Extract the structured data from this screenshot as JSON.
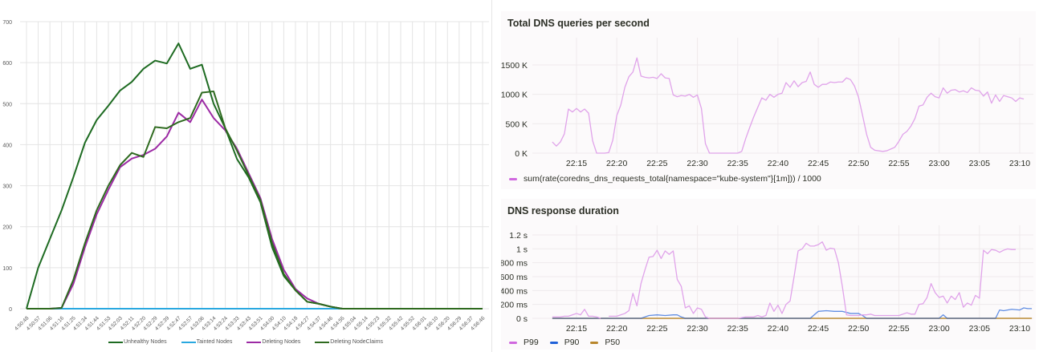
{
  "chart_data": [
    {
      "type": "line",
      "title": "",
      "xlabel": "",
      "ylabel": "",
      "ylim": [
        0,
        700
      ],
      "yticks": [
        0,
        100,
        200,
        300,
        400,
        500,
        600,
        700
      ],
      "grid": true,
      "legend_position": "bottom",
      "x": [
        "4:50:48",
        "4:50:57",
        "4:51:06",
        "4:51:16",
        "4:51:25",
        "4:51:34",
        "4:51:44",
        "4:51:53",
        "4:52:03",
        "4:52:11",
        "4:52:20",
        "4:52:29",
        "4:52:39",
        "4:52:47",
        "4:52:57",
        "4:53:06",
        "4:53:14",
        "4:53:24",
        "4:53:33",
        "4:53:43",
        "4:53:51",
        "4:54:00",
        "4:54:10",
        "4:54:18",
        "4:54:27",
        "4:54:37",
        "4:54:46",
        "4:54:55",
        "4:55:04",
        "4:55:14",
        "4:55:23",
        "4:55:32",
        "4:55:42",
        "4:55:52",
        "4:56:01",
        "4:56:10",
        "4:56:20",
        "4:56:29",
        "4:56:37",
        "4:56:46"
      ],
      "series": [
        {
          "name": "Unhealthy Nodes",
          "color": "#1e6b22",
          "values": [
            0,
            100,
            170,
            240,
            320,
            405,
            460,
            495,
            532,
            553,
            585,
            605,
            598,
            647,
            585,
            595,
            500,
            440,
            365,
            320,
            260,
            150,
            80,
            45,
            17,
            12,
            5,
            0,
            0,
            0,
            0,
            0,
            0,
            0,
            0,
            0,
            0,
            0,
            0,
            0
          ]
        },
        {
          "name": "Tainted Nodes",
          "color": "#29a8e0",
          "values": [
            0,
            0,
            0,
            0,
            0,
            0,
            0,
            0,
            0,
            0,
            0,
            0,
            0,
            0,
            0,
            0,
            0,
            0,
            0,
            0,
            0,
            0,
            0,
            0,
            0,
            0,
            0,
            0,
            0,
            0,
            0,
            0,
            0,
            0,
            0,
            0,
            0,
            0,
            0,
            0
          ]
        },
        {
          "name": "Deleting Nodes",
          "color": "#9c2aa4",
          "values": [
            0,
            0,
            0,
            2,
            60,
            150,
            230,
            290,
            345,
            366,
            375,
            390,
            420,
            478,
            455,
            510,
            465,
            435,
            390,
            330,
            270,
            170,
            95,
            48,
            25,
            12,
            5,
            0,
            0,
            0,
            0,
            0,
            0,
            0,
            0,
            0,
            0,
            0,
            0,
            0
          ]
        },
        {
          "name": "Deleting NodeClaims",
          "color": "#2e6a1f",
          "values": [
            0,
            0,
            0,
            2,
            70,
            160,
            240,
            300,
            350,
            380,
            370,
            443,
            440,
            455,
            465,
            527,
            530,
            440,
            385,
            325,
            265,
            160,
            85,
            45,
            17,
            12,
            5,
            0,
            0,
            0,
            0,
            0,
            0,
            0,
            0,
            0,
            0,
            0,
            0,
            0
          ]
        }
      ]
    },
    {
      "type": "line",
      "title": "Total DNS queries per second",
      "xlabel": "",
      "ylabel": "",
      "ylim": [
        0,
        1800
      ],
      "yticks": [
        "0 K",
        "500 K",
        "1000 K",
        "1500 K"
      ],
      "x_ticks": [
        "22:15",
        "22:20",
        "22:25",
        "22:30",
        "22:35",
        "22:40",
        "22:45",
        "22:50",
        "22:55",
        "23:00",
        "23:05",
        "23:10"
      ],
      "grid": true,
      "legend_position": "bottom",
      "series": [
        {
          "name": "sum(rate(coredns_dns_requests_total{namespace=\"kube-system\"}[1m])) / 1000",
          "color": "#e0a3ea",
          "x_min": [
            12,
            12.5,
            13,
            13.5,
            14,
            14.5,
            15,
            15.5,
            16,
            16.5,
            17,
            17.5,
            18,
            18.5,
            19,
            19.5,
            20,
            20.5,
            21,
            21.5,
            22,
            22.5,
            23,
            23.5,
            24,
            24.5,
            25,
            25.5,
            26,
            26.5,
            27,
            27.5,
            28,
            28.5,
            29,
            29.5,
            30,
            30.5,
            31,
            31.5,
            32,
            33,
            34,
            35,
            35.5,
            36,
            36.5,
            37,
            37.5,
            38,
            38.5,
            39,
            39.5,
            40,
            40.5,
            41,
            41.5,
            42,
            42.5,
            43,
            43.5,
            44,
            44.5,
            45,
            45.5,
            46,
            46.5,
            47,
            47.5,
            48,
            48.5,
            49,
            49.5,
            50,
            50.5,
            51,
            51.5,
            52,
            53,
            53.5,
            54,
            54.5,
            55,
            55.5,
            56,
            56.5,
            57,
            57.5,
            58,
            58.5,
            59,
            59.5,
            60,
            60.5,
            61,
            61.5,
            62,
            62.5,
            63,
            63.5,
            64,
            64.5,
            65,
            65.5,
            66,
            66.5,
            67,
            67.5,
            68,
            68.5,
            69,
            69.5,
            70,
            70.5,
            71,
            71.5
          ],
          "values": [
            190,
            120,
            190,
            330,
            750,
            700,
            760,
            700,
            750,
            680,
            210,
            0,
            0,
            0,
            10,
            220,
            640,
            820,
            1120,
            1300,
            1380,
            1620,
            1310,
            1290,
            1280,
            1290,
            1270,
            1350,
            1280,
            1270,
            990,
            960,
            980,
            970,
            1000,
            950,
            990,
            760,
            160,
            0,
            0,
            0,
            0,
            0,
            30,
            250,
            440,
            620,
            780,
            940,
            900,
            1000,
            950,
            1000,
            1020,
            1200,
            1120,
            1230,
            1130,
            1200,
            1220,
            1380,
            1170,
            1120,
            1170,
            1170,
            1210,
            1200,
            1210,
            1210,
            1280,
            1250,
            1140,
            950,
            640,
            320,
            100,
            50,
            30,
            40,
            70,
            100,
            200,
            320,
            370,
            460,
            590,
            800,
            820,
            950,
            1020,
            960,
            940,
            1110,
            1020,
            1070,
            1080,
            1040,
            1060,
            1030,
            1110,
            1070,
            1060,
            970,
            1040,
            850,
            990,
            880,
            980,
            960,
            940,
            880,
            940,
            920
          ]
        }
      ]
    },
    {
      "type": "line",
      "title": "DNS response duration",
      "xlabel": "",
      "ylabel": "",
      "ylim": [
        0,
        1.2
      ],
      "yticks": [
        "0 s",
        "200 ms",
        "400 ms",
        "600 ms",
        "800 ms",
        "1 s",
        "1.2 s"
      ],
      "x_ticks": [
        "22:15",
        "22:20",
        "22:25",
        "22:30",
        "22:35",
        "22:40",
        "22:45",
        "22:50",
        "22:55",
        "23:00",
        "23:05",
        "23:10"
      ],
      "grid": true,
      "legend_position": "bottom",
      "series": [
        {
          "name": "P99",
          "color": "#e0a3ea",
          "x_min": [
            12,
            12.5,
            13,
            13.5,
            14,
            14.5,
            15,
            15.5,
            16,
            16.5,
            17,
            17.5,
            18,
            null,
            19,
            19.5,
            20,
            20.5,
            21,
            21.5,
            22,
            22.5,
            23,
            23.5,
            24,
            24.5,
            25,
            25.5,
            26,
            26.5,
            27,
            27.5,
            28,
            28.5,
            29,
            29.5,
            30,
            30.5,
            31,
            31.5,
            32,
            33,
            34,
            35,
            35.5,
            36,
            36.5,
            37,
            37.5,
            38,
            38.5,
            39,
            39.5,
            40,
            40.5,
            41,
            41.5,
            42,
            42.5,
            43,
            43.5,
            44,
            44.5,
            45,
            45.5,
            46,
            46.5,
            47,
            47.5,
            48,
            48.5,
            49,
            49.5,
            50,
            50.5,
            51,
            51.5,
            52,
            53,
            54,
            55,
            56,
            56.5,
            57,
            57.5,
            58,
            58.5,
            59,
            59.5,
            60,
            60.5,
            61,
            61.5,
            62,
            62.5,
            63,
            63.5,
            64,
            64.5,
            65,
            65.5,
            66,
            66.5,
            67,
            67.5,
            68,
            68.5,
            69,
            69.5,
            70,
            70.5,
            71,
            71.5
          ],
          "values": [
            0.02,
            0.02,
            0.02,
            0.03,
            0.03,
            0.05,
            0.07,
            0.05,
            0.13,
            0.03,
            0.03,
            0.02,
            0,
            null,
            0.03,
            0.03,
            0.03,
            0.05,
            0.07,
            0.11,
            0.36,
            0.18,
            0.5,
            0.7,
            0.88,
            0.89,
            0.98,
            0.86,
            0.97,
            0.92,
            0.97,
            0.56,
            0.46,
            0.15,
            0.18,
            0.07,
            0.15,
            0.13,
            0.02,
            0,
            0,
            0,
            0,
            0,
            0.01,
            0.02,
            0.02,
            0.02,
            0.04,
            0.02,
            0.04,
            0.22,
            0.1,
            0.19,
            0.07,
            0.2,
            0.25,
            0.6,
            0.97,
            1.0,
            1.08,
            1.04,
            1.04,
            1.06,
            1.1,
            0.98,
            1.01,
            1.0,
            0.8,
            0.45,
            0.05,
            0.04,
            0.04,
            0.04,
            0.05,
            0.05,
            0.06,
            0.04,
            0.04,
            0.04,
            0.04,
            0.08,
            0.06,
            0.06,
            0.2,
            0.21,
            0.3,
            0.5,
            0.37,
            0.3,
            0.32,
            0.22,
            0.32,
            0.27,
            0.37,
            0.16,
            0.22,
            0.19,
            0.33,
            0.29,
            0.98,
            0.93,
            0.99,
            0.98,
            0.95,
            0.98,
            1.0,
            0.99,
            0.99
          ]
        },
        {
          "name": "P90",
          "color": "#1f60d8",
          "x_min": [
            12,
            23,
            24,
            25,
            26,
            27,
            27.5,
            28,
            28.5,
            44,
            45,
            46,
            47,
            48,
            49,
            50,
            50.5,
            51,
            60,
            60.5,
            61,
            67,
            67.5,
            68,
            69,
            70,
            70.5,
            71,
            71.5
          ],
          "values": [
            0,
            0,
            0.04,
            0.05,
            0.04,
            0.05,
            0.05,
            0.02,
            0,
            0,
            0.1,
            0.11,
            0.1,
            0.1,
            0.07,
            0.07,
            0.04,
            0,
            0,
            0.05,
            0,
            0,
            0.12,
            0.11,
            0.13,
            0.12,
            0.15,
            0.14,
            0.14
          ]
        },
        {
          "name": "P50",
          "color": "#b8862b",
          "x_min": [
            12,
            71.5
          ],
          "values": [
            0,
            0
          ]
        }
      ]
    }
  ],
  "left_chart": {
    "y_ticks": [
      "0",
      "100",
      "200",
      "300",
      "400",
      "500",
      "600",
      "700"
    ],
    "legend": [
      {
        "label": "Unhealthy Nodes",
        "color": "#1e6b22"
      },
      {
        "label": "Tainted Nodes",
        "color": "#29a8e0"
      },
      {
        "label": "Deleting Nodes",
        "color": "#9c2aa4"
      },
      {
        "label": "Deleting NodeClaims",
        "color": "#2e6a1f"
      }
    ]
  },
  "dns_queries_panel": {
    "title": "Total DNS queries per second",
    "legend": [
      {
        "label": "sum(rate(coredns_dns_requests_total{namespace=\"kube-system\"}[1m])) / 1000",
        "color": "#d068df"
      }
    ]
  },
  "dns_duration_panel": {
    "title": "DNS response duration",
    "legend": [
      {
        "label": "P99",
        "color": "#d068df"
      },
      {
        "label": "P90",
        "color": "#1f60d8"
      },
      {
        "label": "P50",
        "color": "#b8862b"
      }
    ]
  }
}
